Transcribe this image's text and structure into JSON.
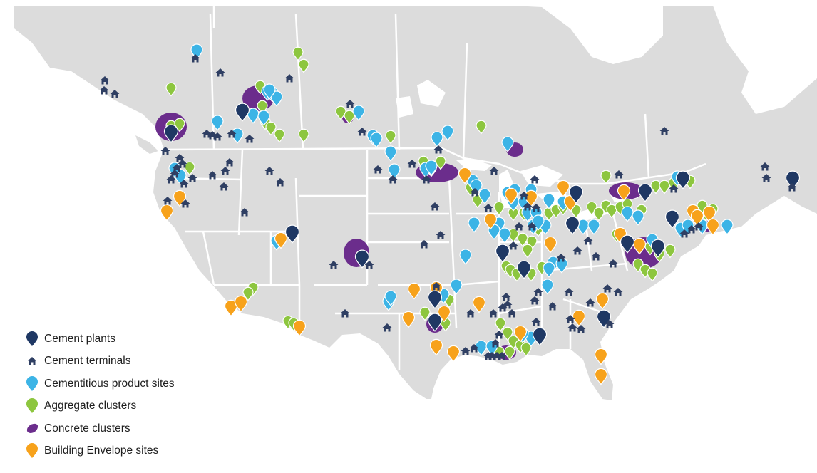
{
  "colors": {
    "land": "#dcdcdc",
    "border": "#ffffff",
    "cement_plant": "#1f3864",
    "cement_terminal": "#2f3f63",
    "cementitious": "#3cb4e6",
    "aggregate": "#8dc63f",
    "concrete": "#6b2d8c",
    "building_envelope": "#f7a21b"
  },
  "legend": [
    {
      "key": "cement_plant",
      "label": "Cement plants",
      "icon": "marker-pin-icon"
    },
    {
      "key": "cement_terminal",
      "label": "Cement terminals",
      "icon": "house-icon"
    },
    {
      "key": "cementitious",
      "label": "Cementitious product sites",
      "icon": "marker-pin-icon"
    },
    {
      "key": "aggregate",
      "label": "Aggregate clusters",
      "icon": "marker-pin-icon"
    },
    {
      "key": "concrete",
      "label": "Concrete clusters",
      "icon": "blob-icon"
    },
    {
      "key": "building_envelope",
      "label": "Building Envelope sites",
      "icon": "marker-pin-icon"
    }
  ]
}
